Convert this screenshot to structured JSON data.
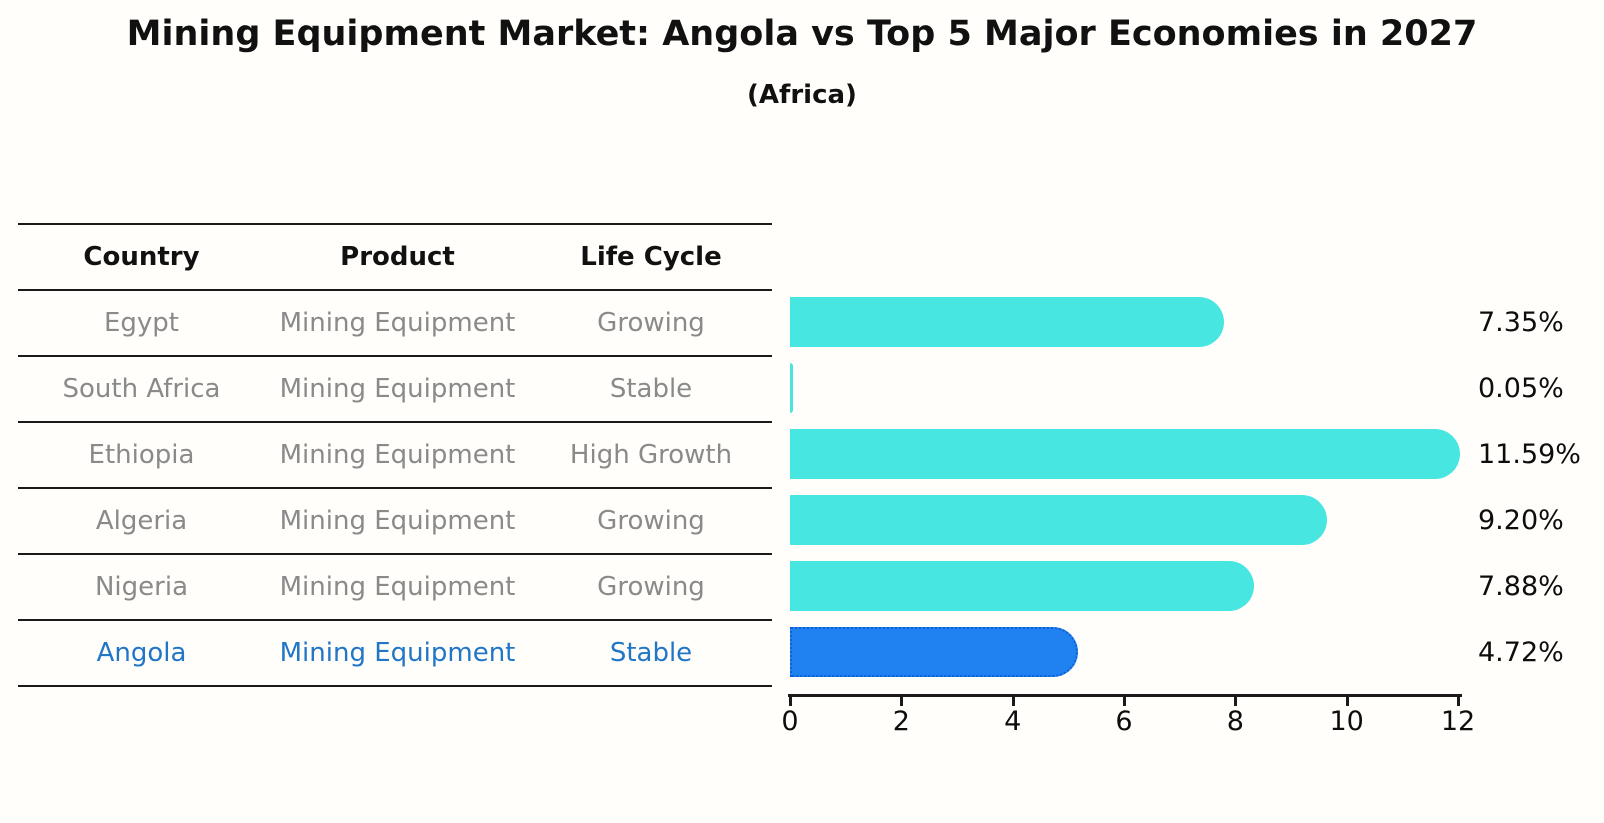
{
  "title": "Mining Equipment Market: Angola vs Top 5 Major Economies in 2027",
  "subtitle": "(Africa)",
  "table": {
    "headers": [
      "Country",
      "Product",
      "Life Cycle"
    ],
    "rows": [
      {
        "country": "Egypt",
        "product": "Mining Equipment",
        "life_cycle": "Growing"
      },
      {
        "country": "South Africa",
        "product": "Mining Equipment",
        "life_cycle": "Stable"
      },
      {
        "country": "Ethiopia",
        "product": "Mining Equipment",
        "life_cycle": "High Growth"
      },
      {
        "country": "Algeria",
        "product": "Mining Equipment",
        "life_cycle": "Growing"
      },
      {
        "country": "Nigeria",
        "product": "Mining Equipment",
        "life_cycle": "Growing"
      },
      {
        "country": "Angola",
        "product": "Mining Equipment",
        "life_cycle": "Stable"
      }
    ]
  },
  "chart_data": {
    "type": "bar",
    "orientation": "horizontal",
    "title": "Mining Equipment Market: Angola vs Top 5 Major Economies in 2027",
    "subtitle": "(Africa)",
    "categories": [
      "Egypt",
      "South Africa",
      "Ethiopia",
      "Algeria",
      "Nigeria",
      "Angola"
    ],
    "values": [
      7.35,
      0.05,
      11.59,
      9.2,
      7.88,
      4.72
    ],
    "value_labels": [
      "7.35%",
      "0.05%",
      "11.59%",
      "9.20%",
      "7.88%",
      "4.72%"
    ],
    "xlabel": "",
    "ylabel": "",
    "xlim": [
      0,
      12
    ],
    "xticks": [
      0,
      2,
      4,
      6,
      8,
      10,
      12
    ],
    "grid": false,
    "legend": false,
    "highlight_index": 5,
    "highlight_category": "Angola"
  },
  "colors": {
    "bar": "#48E6E0",
    "highlight_bar": "#1F82F0",
    "highlight_bar_border": "#0E5FD8",
    "highlight_text": "#2176C7",
    "row_text": "#8A8A8A",
    "header_text": "#111111",
    "line": "#1A1A1A",
    "label_text": "#0D0D0D",
    "background": "#FFFEFB"
  }
}
